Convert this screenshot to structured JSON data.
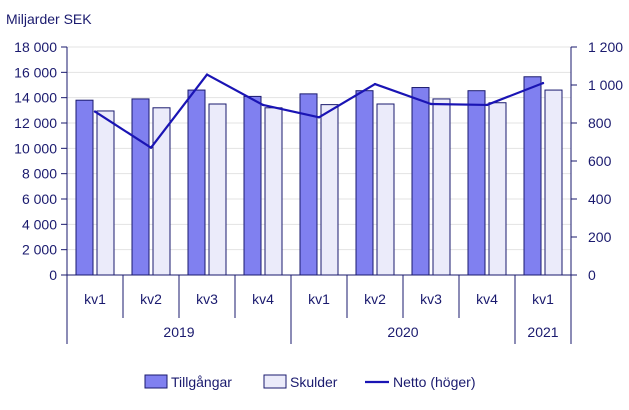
{
  "chart_data": {
    "type": "bar",
    "unit_label": "Miljarder SEK",
    "title": "",
    "xlabel": "",
    "ylabel": "",
    "categories": [
      "kv1",
      "kv2",
      "kv3",
      "kv4",
      "kv1",
      "kv2",
      "kv3",
      "kv4",
      "kv1"
    ],
    "groups": [
      {
        "label": "2019",
        "count": 4
      },
      {
        "label": "2020",
        "count": 4
      },
      {
        "label": "2021",
        "count": 1
      }
    ],
    "left_axis": {
      "min": 0,
      "max": 18000,
      "step": 2000,
      "tick_labels": [
        "0",
        "2 000",
        "4 000",
        "6 000",
        "8 000",
        "10 000",
        "12 000",
        "14 000",
        "16 000",
        "18 000"
      ]
    },
    "right_axis": {
      "min": 0,
      "max": 1200,
      "step": 200,
      "tick_labels": [
        "0",
        "200",
        "400",
        "600",
        "800",
        "1 000",
        "1 200"
      ]
    },
    "series": [
      {
        "name": "Tillgångar",
        "type": "bar",
        "axis": "left",
        "color": "#8080f0",
        "values": [
          13800,
          13900,
          14600,
          14100,
          14300,
          14550,
          14800,
          14550,
          15650
        ]
      },
      {
        "name": "Skulder",
        "type": "bar",
        "axis": "left",
        "color": "#ebebfa",
        "values": [
          12950,
          13200,
          13500,
          13200,
          13450,
          13500,
          13900,
          13600,
          14600
        ]
      },
      {
        "name": "Netto (höger)",
        "type": "line",
        "axis": "right",
        "color": "#1a14b4",
        "values": [
          860,
          670,
          1055,
          895,
          830,
          1005,
          900,
          895,
          1010
        ]
      }
    ],
    "grid": true,
    "legend_position": "bottom"
  },
  "colors": {
    "axis": "#1a1a6e",
    "grid": "#e3e3e3",
    "bar_stroke": "#1a1a6e"
  }
}
